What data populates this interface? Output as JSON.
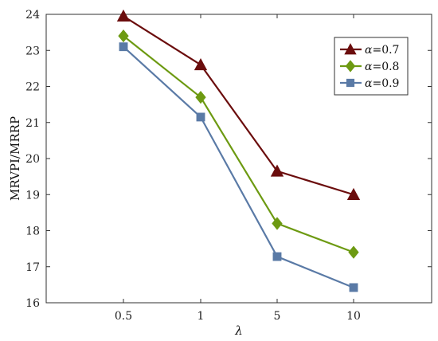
{
  "chart_data": {
    "type": "line",
    "title": "",
    "xlabel": "λ",
    "ylabel": "MRVPI/MRRP",
    "categories": [
      "0.5",
      "1",
      "5",
      "10"
    ],
    "ylim": [
      16,
      24
    ],
    "yticks": [
      16,
      17,
      18,
      19,
      20,
      21,
      22,
      23,
      24
    ],
    "grid": false,
    "legend_position": "top-right",
    "series": [
      {
        "name": "α=0.7",
        "legend_symbol": "α",
        "legend_value": "=0.7",
        "marker": "triangle",
        "color": "#6b0d0d",
        "values": [
          23.95,
          22.6,
          19.65,
          19.0
        ]
      },
      {
        "name": "α=0.8",
        "legend_symbol": "α",
        "legend_value": "=0.8",
        "marker": "diamond",
        "color": "#6d9a12",
        "values": [
          23.4,
          21.7,
          18.2,
          17.4
        ]
      },
      {
        "name": "α=0.9",
        "legend_symbol": "α",
        "legend_value": "=0.9",
        "marker": "square",
        "color": "#5a7aa6",
        "values": [
          23.1,
          21.15,
          17.28,
          16.42
        ]
      }
    ]
  }
}
